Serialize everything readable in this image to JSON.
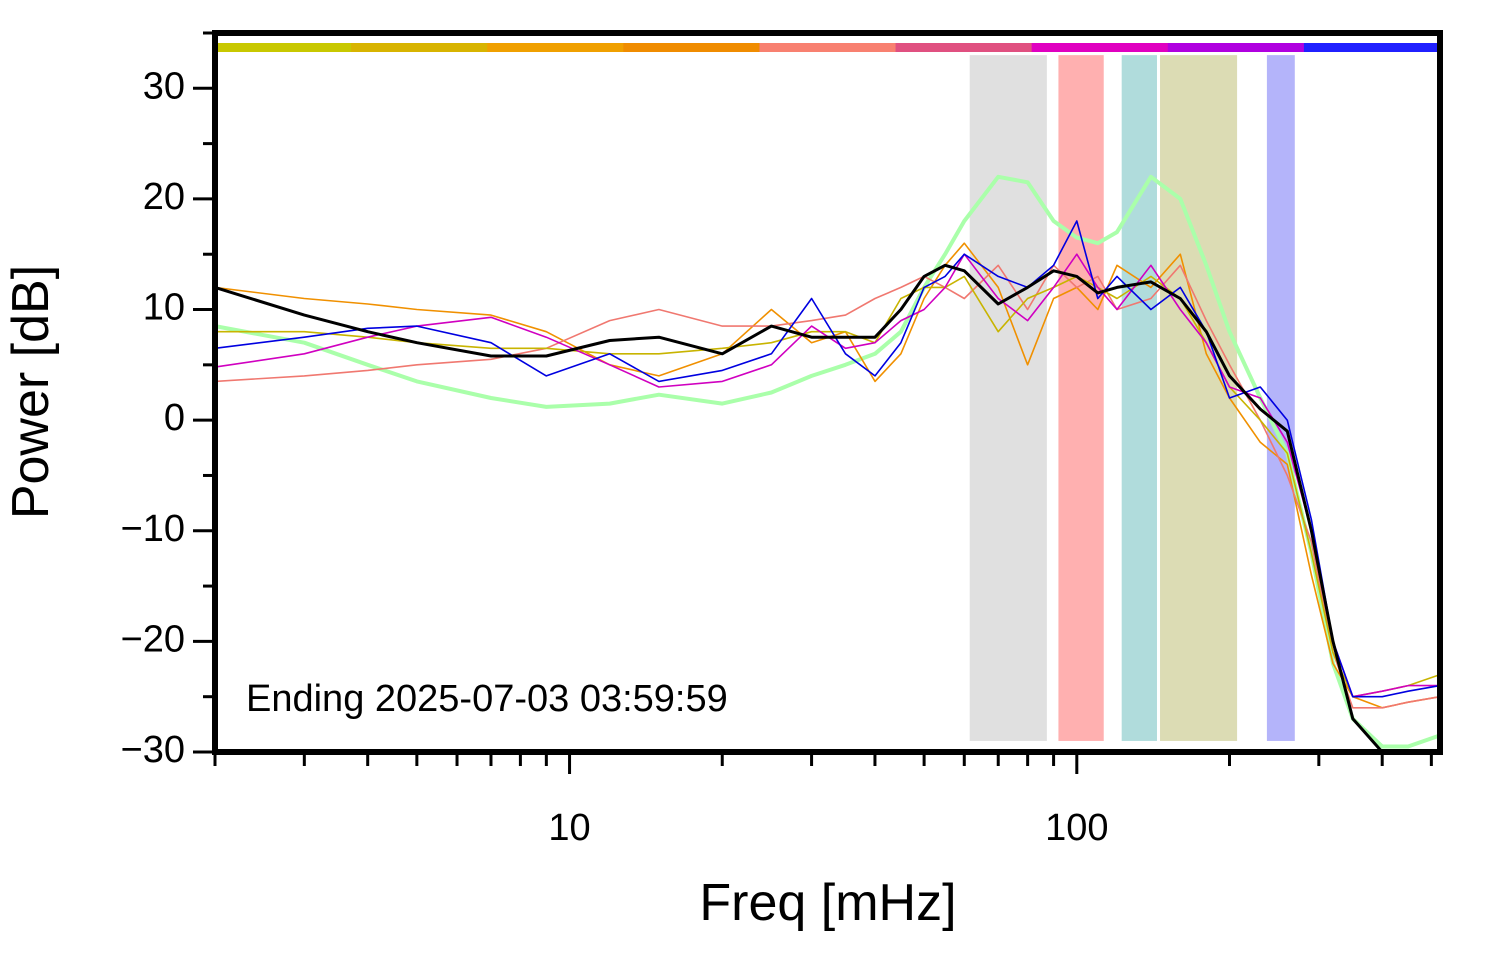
{
  "chart_data": {
    "type": "line",
    "xlabel": "Freq [mHz]",
    "ylabel": "Power [dB]",
    "annotation": "Ending 2025-07-03 03:59:59",
    "xscale": "log",
    "xlim": [
      2,
      520
    ],
    "ylim": [
      -30,
      35
    ],
    "xticks": [
      10,
      100
    ],
    "xminor_ticks": [
      2,
      3,
      4,
      5,
      6,
      7,
      8,
      9,
      20,
      30,
      40,
      50,
      60,
      70,
      80,
      90,
      200,
      300,
      400,
      500
    ],
    "yticks": [
      {
        "value": -30,
        "label": "−30"
      },
      {
        "value": -20,
        "label": "−20"
      },
      {
        "value": -10,
        "label": "−10"
      },
      0,
      10,
      20,
      30
    ],
    "yminor_ticks": [
      -25,
      -15,
      -5,
      5,
      15,
      25,
      35
    ],
    "color_bar": [
      "#c8c800",
      "#d8b400",
      "#f0a000",
      "#f08c00",
      "#f88070",
      "#e05080",
      "#e000c0",
      "#b000e0",
      "#2020ff"
    ],
    "band_ylim": [
      -29,
      33
    ],
    "bands": [
      {
        "x": [
          61.5,
          87.3
        ],
        "color": "#e0e0e0"
      },
      {
        "x": [
          92,
          113
        ],
        "color": "#ffb0b0"
      },
      {
        "x": [
          122.6,
          143.9
        ],
        "color": "#b0dcdc"
      },
      {
        "x": [
          145.9,
          207
        ],
        "color": "#dcdcb4"
      },
      {
        "x": [
          237,
          269
        ],
        "color": "#b4b4fa"
      }
    ],
    "x": [
      2,
      3,
      4,
      5,
      7,
      9,
      12,
      15,
      20,
      25,
      30,
      35,
      40,
      45,
      50,
      55,
      60,
      70,
      80,
      90,
      100,
      110,
      120,
      140,
      160,
      180,
      200,
      230,
      260,
      290,
      320,
      350,
      400,
      450,
      520
    ],
    "series": [
      {
        "color": "#aaffaa",
        "width": 4,
        "values": [
          8.5,
          7,
          5,
          3.5,
          2,
          1.2,
          1.5,
          2.3,
          1.5,
          2.5,
          4,
          5,
          6,
          8,
          12,
          15,
          18,
          22,
          21.5,
          18,
          16.5,
          16,
          17,
          22,
          20,
          14,
          8,
          2,
          -3,
          -12,
          -22,
          -27,
          -29.5,
          -29.5,
          -28.5
        ]
      },
      {
        "color": "#f09000",
        "width": 1.6,
        "values": [
          12,
          11,
          10.5,
          10,
          9.5,
          8,
          5,
          4,
          6,
          10,
          7,
          8,
          3.5,
          6,
          11,
          14,
          16,
          12,
          5,
          11,
          12,
          10,
          14,
          12,
          15,
          6,
          2,
          -2,
          -4,
          -14,
          -22,
          -25,
          -26,
          -25.5,
          -25
        ]
      },
      {
        "color": "#f07870",
        "width": 1.6,
        "values": [
          3.5,
          4,
          4.5,
          5,
          5.5,
          6.5,
          9,
          10,
          8.5,
          8.5,
          9,
          9.5,
          11,
          12,
          13,
          12,
          11,
          14,
          10,
          14,
          12,
          13,
          10,
          11,
          14,
          9,
          5,
          0,
          -5,
          -11,
          -21,
          -26,
          -26,
          -25.5,
          -25
        ]
      },
      {
        "color": "#c8b400",
        "width": 1.6,
        "values": [
          8,
          8,
          7.5,
          7,
          6.5,
          6.5,
          6,
          6,
          6.5,
          7,
          8,
          8,
          7,
          11,
          12,
          12,
          13,
          8,
          11,
          12,
          13,
          12,
          11,
          13,
          11,
          7,
          3,
          0,
          -3,
          -12,
          -21,
          -25,
          -24.5,
          -24,
          -23
        ]
      },
      {
        "color": "#d000c0",
        "width": 1.6,
        "values": [
          4.8,
          6,
          7.5,
          8.5,
          9.3,
          7.5,
          5,
          3,
          3.5,
          5,
          8.5,
          6.5,
          7,
          9,
          10,
          12,
          15,
          11,
          9,
          12,
          15,
          12,
          10,
          14,
          10,
          7,
          3,
          2,
          -2,
          -10,
          -20,
          -25,
          -24.5,
          -24,
          -24
        ]
      },
      {
        "color": "#0000e0",
        "width": 1.6,
        "values": [
          6.5,
          7.5,
          8.3,
          8.5,
          7,
          4,
          6,
          3.5,
          4.5,
          6,
          11,
          6,
          4,
          7,
          12,
          13,
          15,
          13,
          12,
          14,
          18,
          11,
          13,
          10,
          12,
          8,
          2,
          3,
          0,
          -9,
          -20,
          -25,
          -25,
          -24.5,
          -24
        ]
      },
      {
        "color": "#000000",
        "width": 3,
        "values": [
          12,
          9.5,
          8,
          7,
          5.8,
          5.8,
          7.2,
          7.5,
          6,
          8.5,
          7.5,
          7.5,
          7.5,
          10,
          13,
          14,
          13.5,
          10.5,
          12,
          13.5,
          13,
          11.5,
          12,
          12.5,
          11,
          8,
          4,
          1,
          -1,
          -10,
          -20,
          -27,
          -30,
          null,
          null
        ]
      }
    ]
  }
}
